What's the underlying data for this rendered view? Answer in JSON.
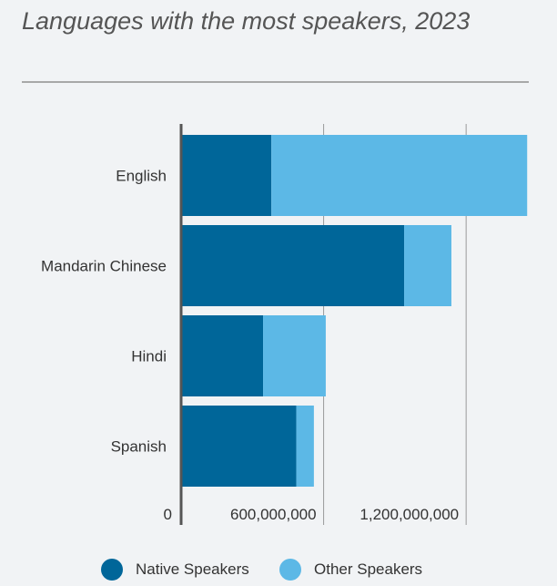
{
  "chart_title": "Languages with the most speakers, 2023",
  "colors": {
    "native": "#006699",
    "other": "#5cb8e6",
    "grid": "#9a9a9a",
    "axis": "#555555",
    "text": "#333333"
  },
  "chart_data": {
    "type": "bar",
    "orientation": "horizontal",
    "stacked": true,
    "title": "Languages with the most speakers, 2023",
    "categories": [
      "English",
      "Mandarin Chinese",
      "Hindi",
      "Spanish"
    ],
    "series": [
      {
        "name": "Native Speakers",
        "values": [
          380000000,
          939000000,
          345000000,
          485000000
        ]
      },
      {
        "name": "Other Speakers",
        "values": [
          1077000000,
          199000000,
          264000000,
          74000000
        ]
      }
    ],
    "xlim": [
      0,
      1460000000
    ],
    "xticks": [
      0,
      600000000,
      1200000000
    ],
    "xtick_labels": [
      "0",
      "600,000,000",
      "1,200,000,000"
    ],
    "grid": true,
    "legend_position": "bottom"
  },
  "legend": [
    {
      "label": "Native Speakers",
      "icon": "circle-swatch"
    },
    {
      "label": "Other Speakers",
      "icon": "circle-swatch"
    }
  ]
}
